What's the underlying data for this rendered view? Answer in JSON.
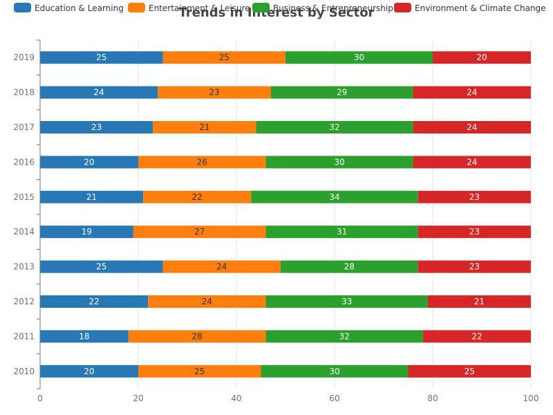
{
  "chart_data": {
    "type": "bar",
    "orientation": "horizontal",
    "stacked": true,
    "title": "Trends in Interest by Sector",
    "categories": [
      "2010",
      "2011",
      "2012",
      "2013",
      "2014",
      "2015",
      "2016",
      "2017",
      "2018",
      "2019"
    ],
    "series": [
      {
        "name": "Education & Learning",
        "color": "#2878b5",
        "values": [
          20,
          18,
          22,
          25,
          19,
          21,
          20,
          23,
          24,
          25
        ]
      },
      {
        "name": "Entertainment & Leisure",
        "color": "#ff7f0e",
        "values": [
          25,
          28,
          24,
          24,
          27,
          22,
          26,
          21,
          23,
          25
        ]
      },
      {
        "name": "Business & Entrepreneurship",
        "color": "#2ca02c",
        "values": [
          30,
          32,
          33,
          28,
          31,
          34,
          30,
          32,
          29,
          30
        ]
      },
      {
        "name": "Environment & Climate Change",
        "color": "#d62728",
        "values": [
          25,
          22,
          21,
          23,
          23,
          23,
          24,
          24,
          24,
          20
        ]
      }
    ],
    "x_ticks": [
      "0",
      "20",
      "40",
      "60",
      "80",
      "100"
    ],
    "xlim": [
      0,
      100
    ],
    "grid": true,
    "legend_position": "top"
  }
}
